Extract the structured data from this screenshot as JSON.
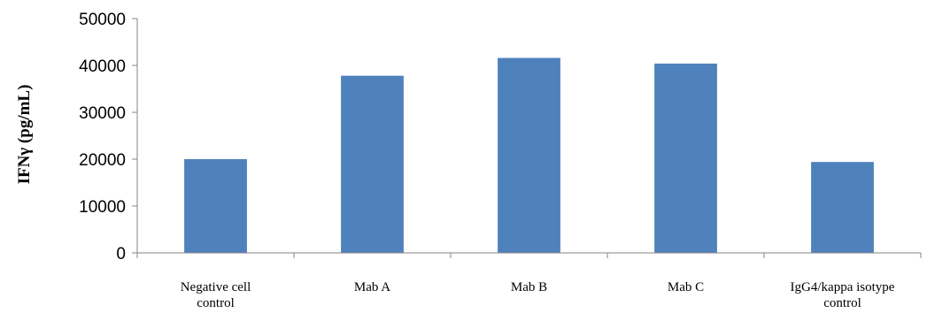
{
  "chart_data": {
    "type": "bar",
    "title": "",
    "ylabel": "IFNγ (pg/mL)",
    "xlabel": "",
    "ylim": [
      0,
      50000
    ],
    "yticks": [
      0,
      10000,
      20000,
      30000,
      40000,
      50000
    ],
    "categories": [
      [
        "Negative cell",
        "control"
      ],
      [
        "Mab A"
      ],
      [
        "Mab B"
      ],
      [
        "Mab C"
      ],
      [
        "IgG4/kappa isotype",
        "control"
      ]
    ],
    "values": [
      20000,
      37800,
      41600,
      40400,
      19400
    ],
    "bar_color": "#4f81bd",
    "grid": false,
    "legend": "none"
  }
}
